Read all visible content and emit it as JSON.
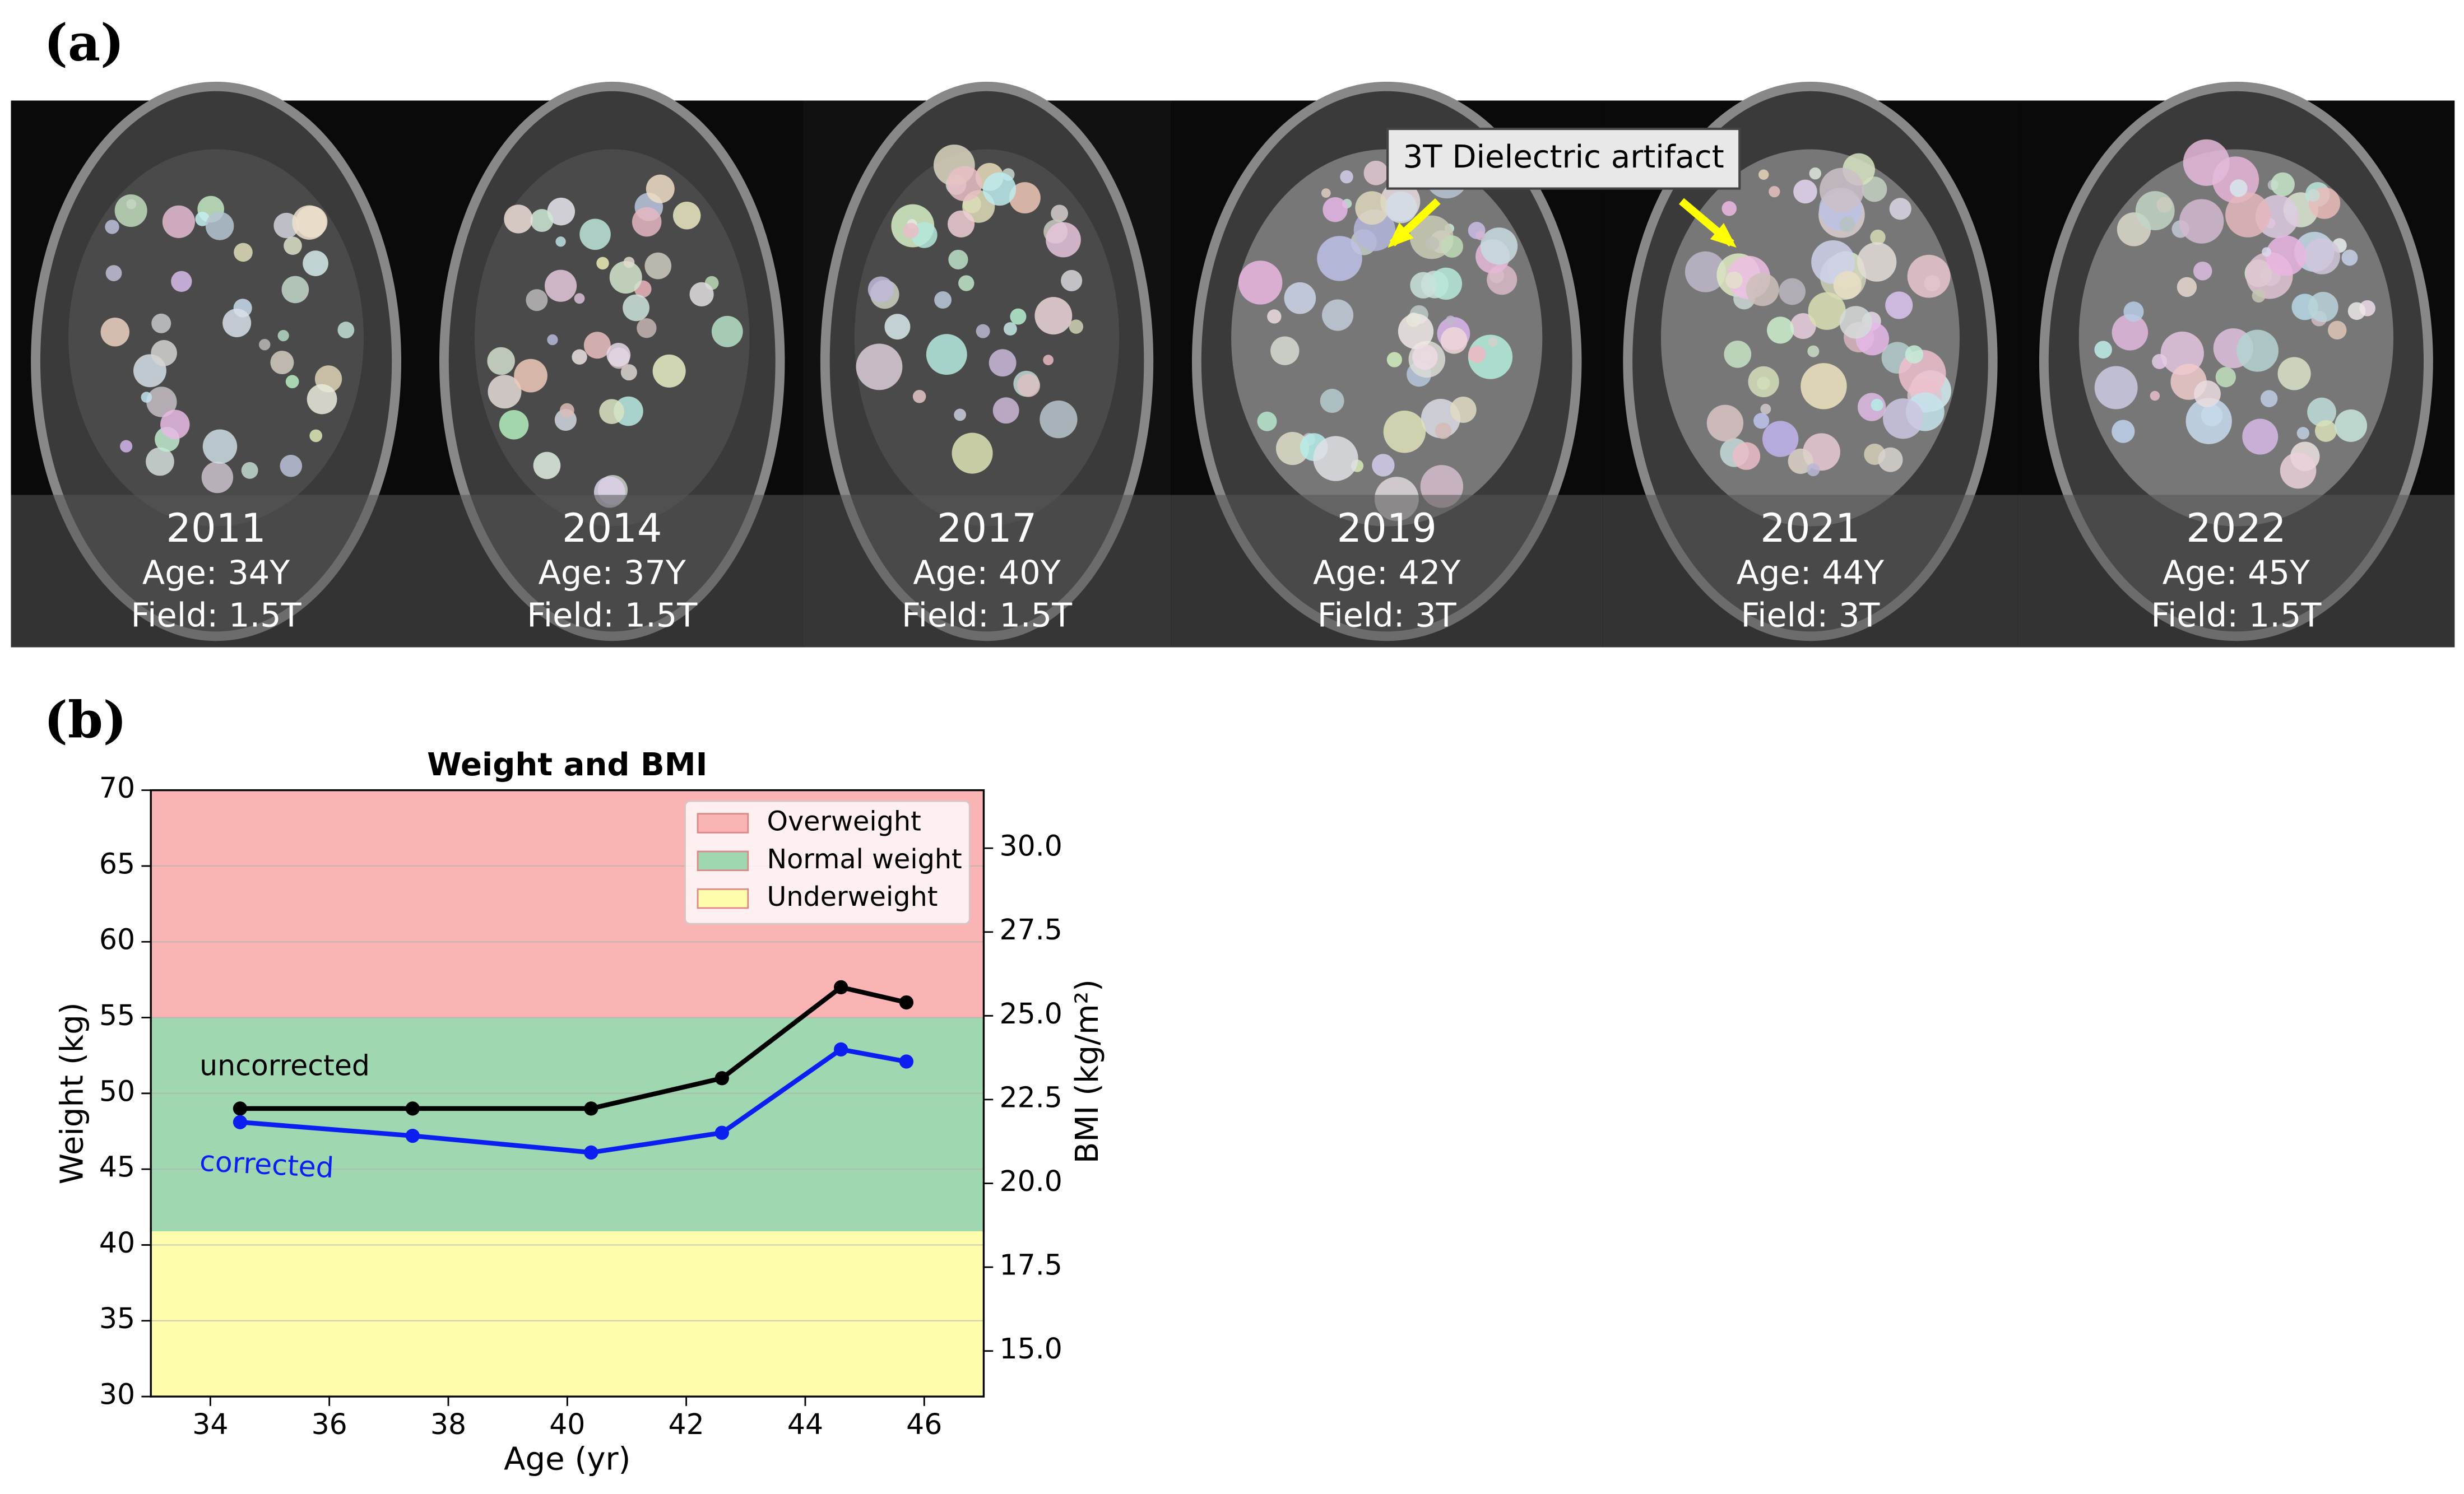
{
  "figure": {
    "panel_a_label": "(a)",
    "panel_b_label": "(b)",
    "scans": [
      {
        "year": "2011",
        "age": "Age: 34Y",
        "field": "Field: 1.5T"
      },
      {
        "year": "2014",
        "age": "Age: 37Y",
        "field": "Field: 1.5T"
      },
      {
        "year": "2017",
        "age": "Age: 40Y",
        "field": "Field: 1.5T"
      },
      {
        "year": "2019",
        "age": "Age: 42Y",
        "field": "Field: 3T"
      },
      {
        "year": "2021",
        "age": "Age: 44Y",
        "field": "Field: 3T"
      },
      {
        "year": "2022",
        "age": "Age: 45Y",
        "field": "Field: 1.5T"
      }
    ],
    "artifact_annotation": "3T Dielectric artifact"
  },
  "chart_data": {
    "type": "line",
    "title": "Weight and BMI",
    "x_label": "Age (yr)",
    "y_label": "Weight (kg)",
    "y2_label": "BMI (kg/m²)",
    "xlim": [
      33,
      47
    ],
    "xticks": [
      34,
      36,
      38,
      40,
      42,
      44,
      46
    ],
    "ylim": [
      30,
      70
    ],
    "yticks": [
      30,
      35,
      40,
      45,
      50,
      55,
      60,
      65,
      70
    ],
    "y2lim": [
      13.64,
      31.73
    ],
    "y2ticks": [
      {
        "value": 15,
        "label": "15.0"
      },
      {
        "value": 17.5,
        "label": "17.5"
      },
      {
        "value": 20,
        "label": "20.0"
      },
      {
        "value": 22.5,
        "label": "22.5"
      },
      {
        "value": 25,
        "label": "25.0"
      },
      {
        "value": 27.5,
        "label": "27.5"
      },
      {
        "value": 30,
        "label": "30.0"
      }
    ],
    "grid": true,
    "legend": "upper right",
    "bands": [
      {
        "name": "Overweight",
        "color": "#fbb4b4",
        "range": [
          55,
          70
        ]
      },
      {
        "name": "Normal weight",
        "color": "#9fd8b0",
        "range": [
          40.9,
          55
        ]
      },
      {
        "name": "Underweight",
        "color": "#fdfdac",
        "range": [
          30,
          40.9
        ]
      }
    ],
    "series": [
      {
        "name": "uncorrected",
        "color": "#000000",
        "x": [
          34.5,
          37.4,
          40.4,
          42.6,
          44.6,
          45.7
        ],
        "values": [
          49,
          49,
          49,
          51,
          57,
          56
        ]
      },
      {
        "name": "corrected",
        "color": "#0a1ff0",
        "x": [
          34.5,
          37.4,
          40.4,
          42.6,
          44.6,
          45.7
        ],
        "values": [
          48.1,
          47.2,
          46.1,
          47.4,
          52.9,
          52.1
        ]
      }
    ]
  }
}
